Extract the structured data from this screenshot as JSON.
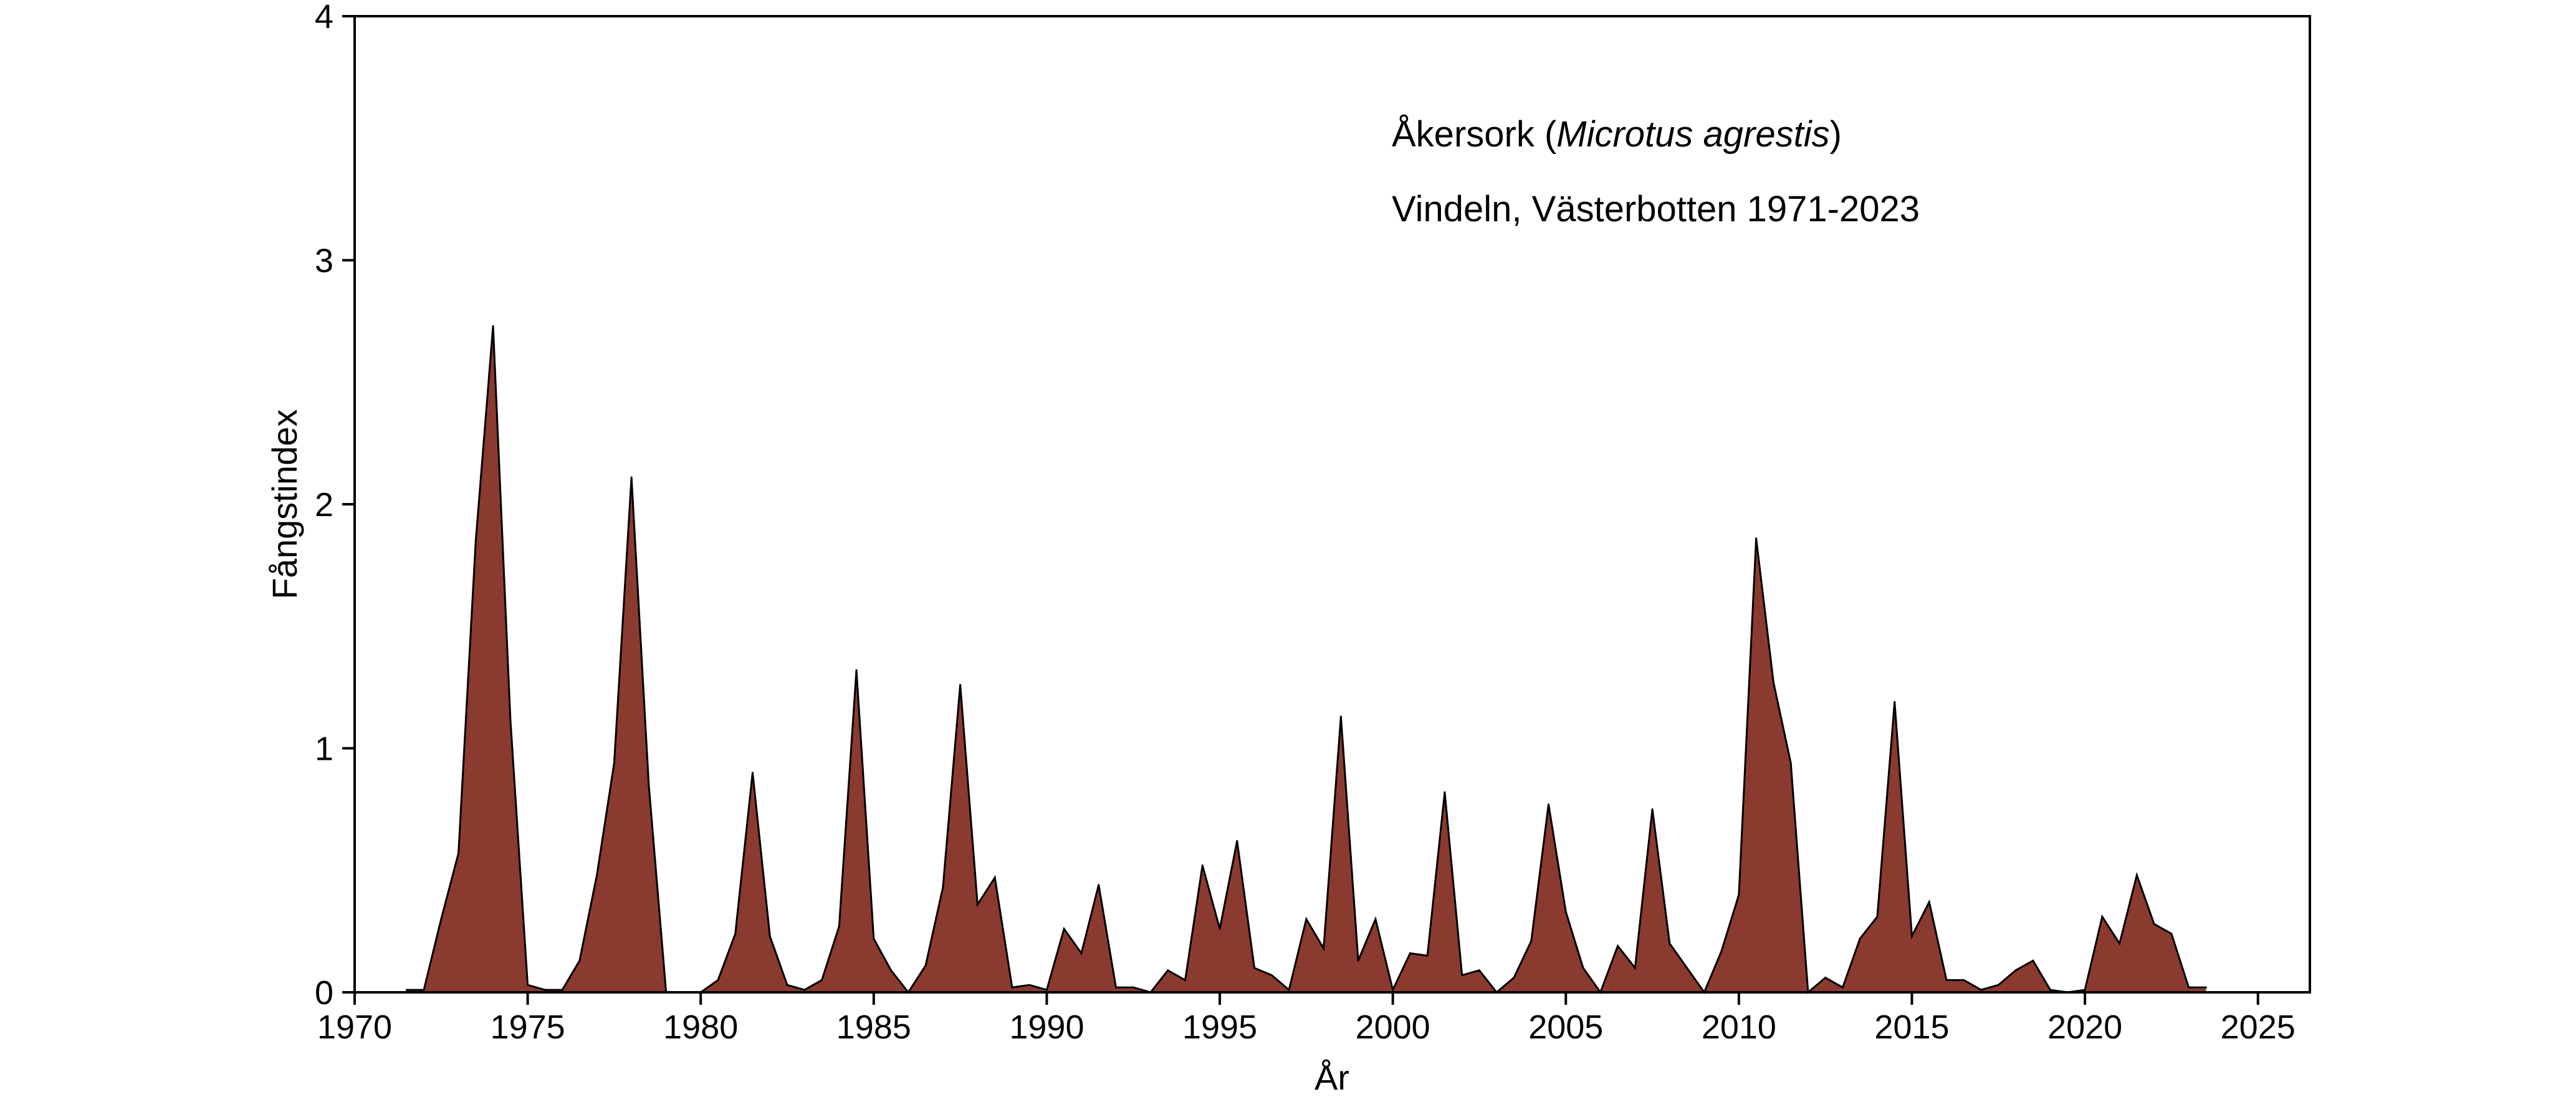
{
  "chart_data": {
    "type": "area",
    "title": "",
    "xlabel": "År",
    "ylabel": "Fångstindex",
    "xlim": [
      1970,
      2026.5
    ],
    "ylim": [
      0,
      4
    ],
    "xticks": [
      1970,
      1975,
      1980,
      1985,
      1990,
      1995,
      2000,
      2005,
      2010,
      2015,
      2020,
      2025
    ],
    "yticks": [
      0,
      1,
      2,
      3,
      4
    ],
    "grid": false,
    "legend": "none",
    "annotations": {
      "species_common": "Åkersork (",
      "species_latin": "Microtus agrestis",
      "species_close": ")",
      "location": "Vindeln, Västerbotten 1971-2023"
    },
    "colors": {
      "fill": "#8b3a2f",
      "line": "#000000"
    },
    "series": [
      {
        "x": [
          1971.5,
          1972.0,
          1972.5,
          1973.0,
          1973.5,
          1974.0,
          1974.5,
          1975.0,
          1975.5,
          1976.0,
          1976.5,
          1977.0,
          1977.5,
          1978.0,
          1978.5,
          1979.0,
          1979.5,
          1980.0,
          1980.5,
          1981.0,
          1981.5,
          1982.0,
          1982.5,
          1983.0,
          1983.5,
          1984.0,
          1984.5,
          1985.0,
          1985.5,
          1986.0,
          1986.5,
          1987.0,
          1987.5,
          1988.0,
          1988.5,
          1989.0,
          1989.5,
          1990.0,
          1990.5,
          1991.0,
          1991.5,
          1992.0,
          1992.5,
          1993.0,
          1993.5,
          1994.0,
          1994.5,
          1995.0,
          1995.5,
          1996.0,
          1996.5,
          1997.0,
          1997.5,
          1998.0,
          1998.5,
          1999.0,
          1999.5,
          2000.0,
          2000.5,
          2001.0,
          2001.5,
          2002.0,
          2002.5,
          2003.0,
          2003.5,
          2004.0,
          2004.5,
          2005.0,
          2005.5,
          2006.0,
          2006.5,
          2007.0,
          2007.5,
          2008.0,
          2008.5,
          2009.0,
          2009.5,
          2010.0,
          2010.5,
          2011.0,
          2011.5,
          2012.0,
          2012.5,
          2013.0,
          2013.5,
          2014.0,
          2014.5,
          2015.0,
          2015.5,
          2016.0,
          2016.5,
          2017.0,
          2017.5,
          2018.0,
          2018.5,
          2019.0,
          2019.5,
          2020.0,
          2020.5,
          2021.0,
          2021.5,
          2022.0,
          2022.5,
          2023.0,
          2023.5
        ],
        "values": [
          0.01,
          0.01,
          0.3,
          0.57,
          1.85,
          2.73,
          1.12,
          0.03,
          0.01,
          0.01,
          0.13,
          0.48,
          0.94,
          2.11,
          0.85,
          0.0,
          0.0,
          0.0,
          0.05,
          0.24,
          0.9,
          0.23,
          0.03,
          0.01,
          0.05,
          0.27,
          1.32,
          0.22,
          0.09,
          0.0,
          0.11,
          0.43,
          1.26,
          0.36,
          0.47,
          0.02,
          0.03,
          0.01,
          0.26,
          0.16,
          0.44,
          0.02,
          0.02,
          0.0,
          0.09,
          0.05,
          0.52,
          0.26,
          0.62,
          0.1,
          0.07,
          0.01,
          0.3,
          0.18,
          1.13,
          0.13,
          0.3,
          0.01,
          0.16,
          0.15,
          0.82,
          0.07,
          0.09,
          0.0,
          0.06,
          0.21,
          0.77,
          0.33,
          0.1,
          0.0,
          0.19,
          0.1,
          0.75,
          0.2,
          0.1,
          0.0,
          0.17,
          0.4,
          1.86,
          1.27,
          0.94,
          0.0,
          0.06,
          0.02,
          0.22,
          0.31,
          1.19,
          0.23,
          0.37,
          0.05,
          0.05,
          0.01,
          0.03,
          0.09,
          0.13,
          0.01,
          0.0,
          0.01,
          0.31,
          0.2,
          0.48,
          0.28,
          0.24,
          0.02,
          0.02
        ]
      }
    ]
  }
}
